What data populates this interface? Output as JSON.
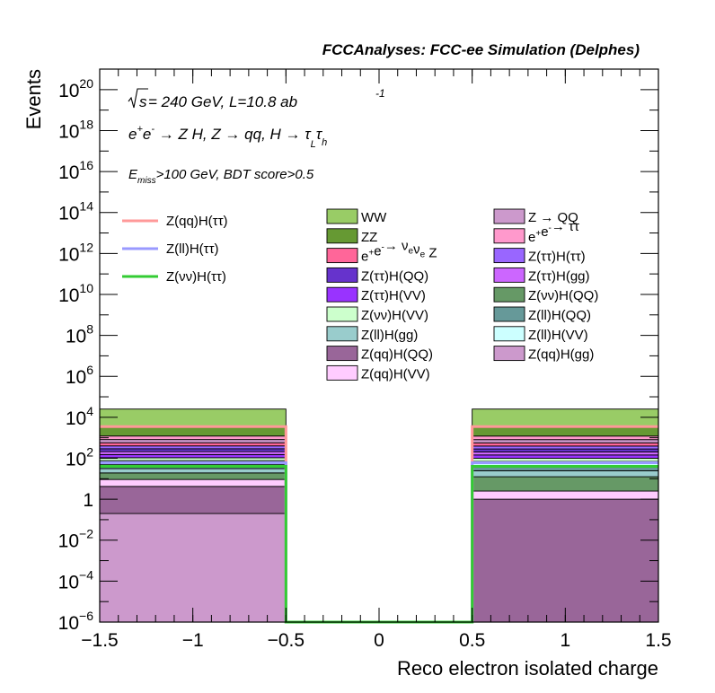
{
  "chart_data": {
    "type": "histogram",
    "title": "FCCAnalyses: FCC-ee Simulation (Delphes)",
    "xlabel": "Reco electron isolated charge",
    "ylabel": "Events",
    "xlim": [
      -1.5,
      1.5
    ],
    "ylim": [
      1e-06,
      1e+21
    ],
    "yscale": "log",
    "bin_edges": [
      -1.5,
      -0.5,
      0.5,
      1.5
    ],
    "x_ticks": [
      "−1.5",
      "−1",
      "−0.5",
      "0",
      "0.5",
      "1",
      "1.5"
    ],
    "x_tick_values": [
      -1.5,
      -1,
      -0.5,
      0,
      0.5,
      1,
      1.5
    ],
    "y_ticks": [
      {
        "v": 1e-06,
        "base": "10",
        "exp": "−6"
      },
      {
        "v": 0.0001,
        "base": "10",
        "exp": "−4"
      },
      {
        "v": 0.01,
        "base": "10",
        "exp": "−2"
      },
      {
        "v": 1,
        "base": "1",
        "exp": ""
      },
      {
        "v": 100.0,
        "base": "10",
        "exp": "2"
      },
      {
        "v": 10000.0,
        "base": "10",
        "exp": "4"
      },
      {
        "v": 1000000.0,
        "base": "10",
        "exp": "6"
      },
      {
        "v": 100000000.0,
        "base": "10",
        "exp": "8"
      },
      {
        "v": 10000000000.0,
        "base": "10",
        "exp": "10"
      },
      {
        "v": 1000000000000.0,
        "base": "10",
        "exp": "12"
      },
      {
        "v": 100000000000000.0,
        "base": "10",
        "exp": "14"
      },
      {
        "v": 1e+16,
        "base": "10",
        "exp": "16"
      },
      {
        "v": 1e+18,
        "base": "10",
        "exp": "18"
      },
      {
        "v": 1e+20,
        "base": "10",
        "exp": "20"
      }
    ],
    "annotations": {
      "line1": {
        "sqrt": "√",
        "s": "s",
        "rest": " = 240 GeV, L=10.8 ab",
        "sup": "-1"
      },
      "line2": {
        "e": "e",
        "plus": "+",
        "e2": "e",
        "minus": "-",
        "arrow": " → Z H, Z  → qq, H  → ",
        "tau1": "τ",
        "sub1": "L",
        "tau2": "τ",
        "sub2": "h"
      },
      "line3": {
        "E": "E",
        "sub": "miss",
        "rest": ">100 GeV, BDT score>0.5"
      }
    },
    "stack": [
      {
        "color": "#cc99cc",
        "values": [
          0.2,
          0
        ]
      },
      {
        "color": "#996699",
        "values": [
          4,
          1
        ]
      },
      {
        "color": "#ffccff",
        "values": [
          5,
          1.5
        ]
      },
      {
        "color": "#669966",
        "values": [
          10,
          10
        ]
      },
      {
        "color": "#99cccc",
        "values": [
          12,
          12
        ]
      },
      {
        "color": "#669999",
        "values": [
          20,
          20
        ]
      },
      {
        "color": "#ccffff",
        "values": [
          25,
          25
        ]
      },
      {
        "color": "#ccffcc",
        "values": [
          30,
          30
        ]
      },
      {
        "color": "#9933ff",
        "values": [
          45,
          45
        ]
      },
      {
        "color": "#cc66ff",
        "values": [
          60,
          60
        ]
      },
      {
        "color": "#6633cc",
        "values": [
          80,
          80
        ]
      },
      {
        "color": "#9966ff",
        "values": [
          110,
          110
        ]
      },
      {
        "color": "#ff6699",
        "values": [
          170,
          170
        ]
      },
      {
        "color": "#cc99cc",
        "values": [
          250,
          250
        ]
      },
      {
        "color": "#ff99cc",
        "values": [
          400,
          400
        ]
      },
      {
        "color": "#669933",
        "values": [
          2000,
          2000
        ]
      },
      {
        "color": "#99cc66",
        "values": [
          22000,
          22000
        ]
      }
    ],
    "signals": [
      {
        "color": "#ff9999",
        "values": [
          3500,
          3500
        ]
      },
      {
        "color": "#9999ff",
        "values": [
          60,
          60
        ]
      },
      {
        "color": "#33cc33",
        "values": [
          40,
          40
        ]
      }
    ],
    "legend_signals": [
      {
        "label": "Z(qq)H(ττ)",
        "color": "#ff9999"
      },
      {
        "label": "Z(ll)H(ττ)",
        "color": "#9999ff"
      },
      {
        "label": "Z(νν)H(ττ)",
        "color": "#33cc33"
      }
    ],
    "legend_col1": [
      {
        "color": "#99cc66",
        "parts": [
          [
            "WW",
            ""
          ]
        ]
      },
      {
        "color": "#669933",
        "parts": [
          [
            "ZZ",
            ""
          ]
        ]
      },
      {
        "color": "#ff6699",
        "parts": [
          [
            "e",
            ""
          ],
          [
            "+",
            "sup"
          ],
          [
            "e",
            ""
          ],
          [
            "-",
            "sup"
          ],
          [
            "→ ν",
            ""
          ],
          [
            "e",
            "sub"
          ],
          [
            "ν",
            ""
          ],
          [
            "e",
            "sub"
          ],
          [
            " Z",
            ""
          ]
        ]
      },
      {
        "color": "#6633cc",
        "parts": [
          [
            "Z(ττ)H(QQ)",
            ""
          ]
        ]
      },
      {
        "color": "#9933ff",
        "parts": [
          [
            "Z(ττ)H(VV)",
            ""
          ]
        ]
      },
      {
        "color": "#ccffcc",
        "parts": [
          [
            "Z(νν)H(VV)",
            ""
          ]
        ]
      },
      {
        "color": "#99cccc",
        "parts": [
          [
            "Z(ll)H(gg)",
            ""
          ]
        ]
      },
      {
        "color": "#996699",
        "parts": [
          [
            "Z(qq)H(QQ)",
            ""
          ]
        ]
      },
      {
        "color": "#ffccff",
        "parts": [
          [
            "Z(qq)H(VV)",
            ""
          ]
        ]
      }
    ],
    "legend_col2": [
      {
        "color": "#cc99cc",
        "parts": [
          [
            "Z → QQ",
            ""
          ]
        ]
      },
      {
        "color": "#ff99cc",
        "parts": [
          [
            "e",
            ""
          ],
          [
            "+",
            "sup"
          ],
          [
            "e",
            ""
          ],
          [
            "-",
            "sup"
          ],
          [
            "→ ττ",
            ""
          ]
        ]
      },
      {
        "color": "#9966ff",
        "parts": [
          [
            "Z(ττ)H(ττ)",
            ""
          ]
        ]
      },
      {
        "color": "#cc66ff",
        "parts": [
          [
            "Z(ττ)H(gg)",
            ""
          ]
        ]
      },
      {
        "color": "#669966",
        "parts": [
          [
            "Z(νν)H(QQ)",
            ""
          ]
        ]
      },
      {
        "color": "#669999",
        "parts": [
          [
            "Z(ll)H(QQ)",
            ""
          ]
        ]
      },
      {
        "color": "#ccffff",
        "parts": [
          [
            "Z(ll)H(VV)",
            ""
          ]
        ]
      },
      {
        "color": "#cc99cc",
        "parts": [
          [
            "Z(qq)H(gg)",
            ""
          ]
        ]
      }
    ]
  }
}
